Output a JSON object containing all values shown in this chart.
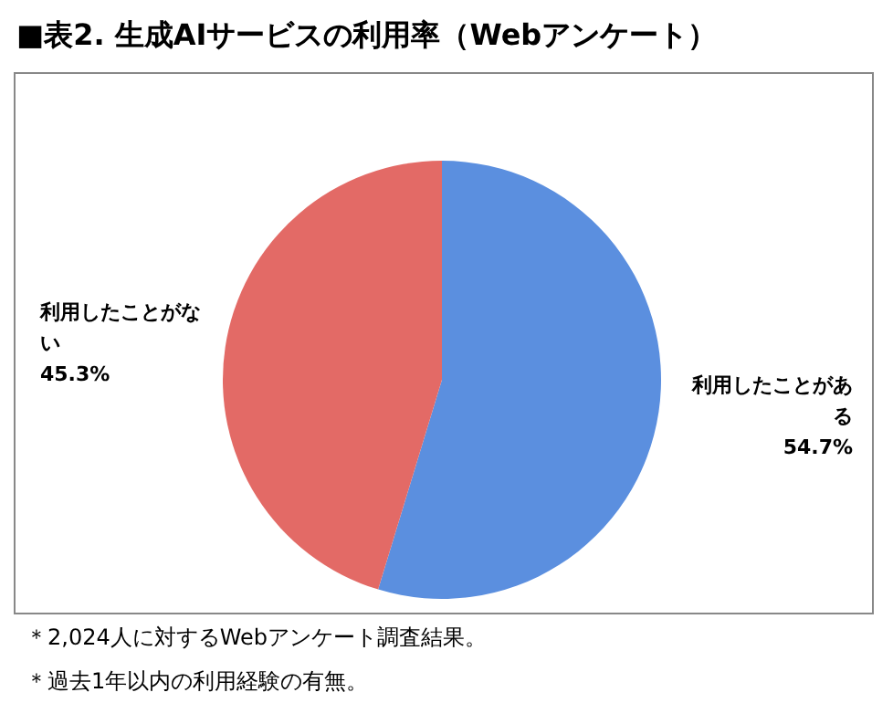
{
  "chart_data": {
    "type": "pie",
    "title": "■表2. 生成AIサービスの利用率（Webアンケート）",
    "categories": [
      "利用したことがある",
      "利用したことがない"
    ],
    "values": [
      54.7,
      45.3
    ],
    "colors": [
      "#5b8fdf",
      "#e36a66"
    ],
    "value_labels": [
      "54.7%",
      "45.3%"
    ],
    "legend": false,
    "annotations": [
      "＊2,024人に対するWebアンケート調査結果。",
      "＊過去1年以内の利用経験の有無。"
    ]
  }
}
